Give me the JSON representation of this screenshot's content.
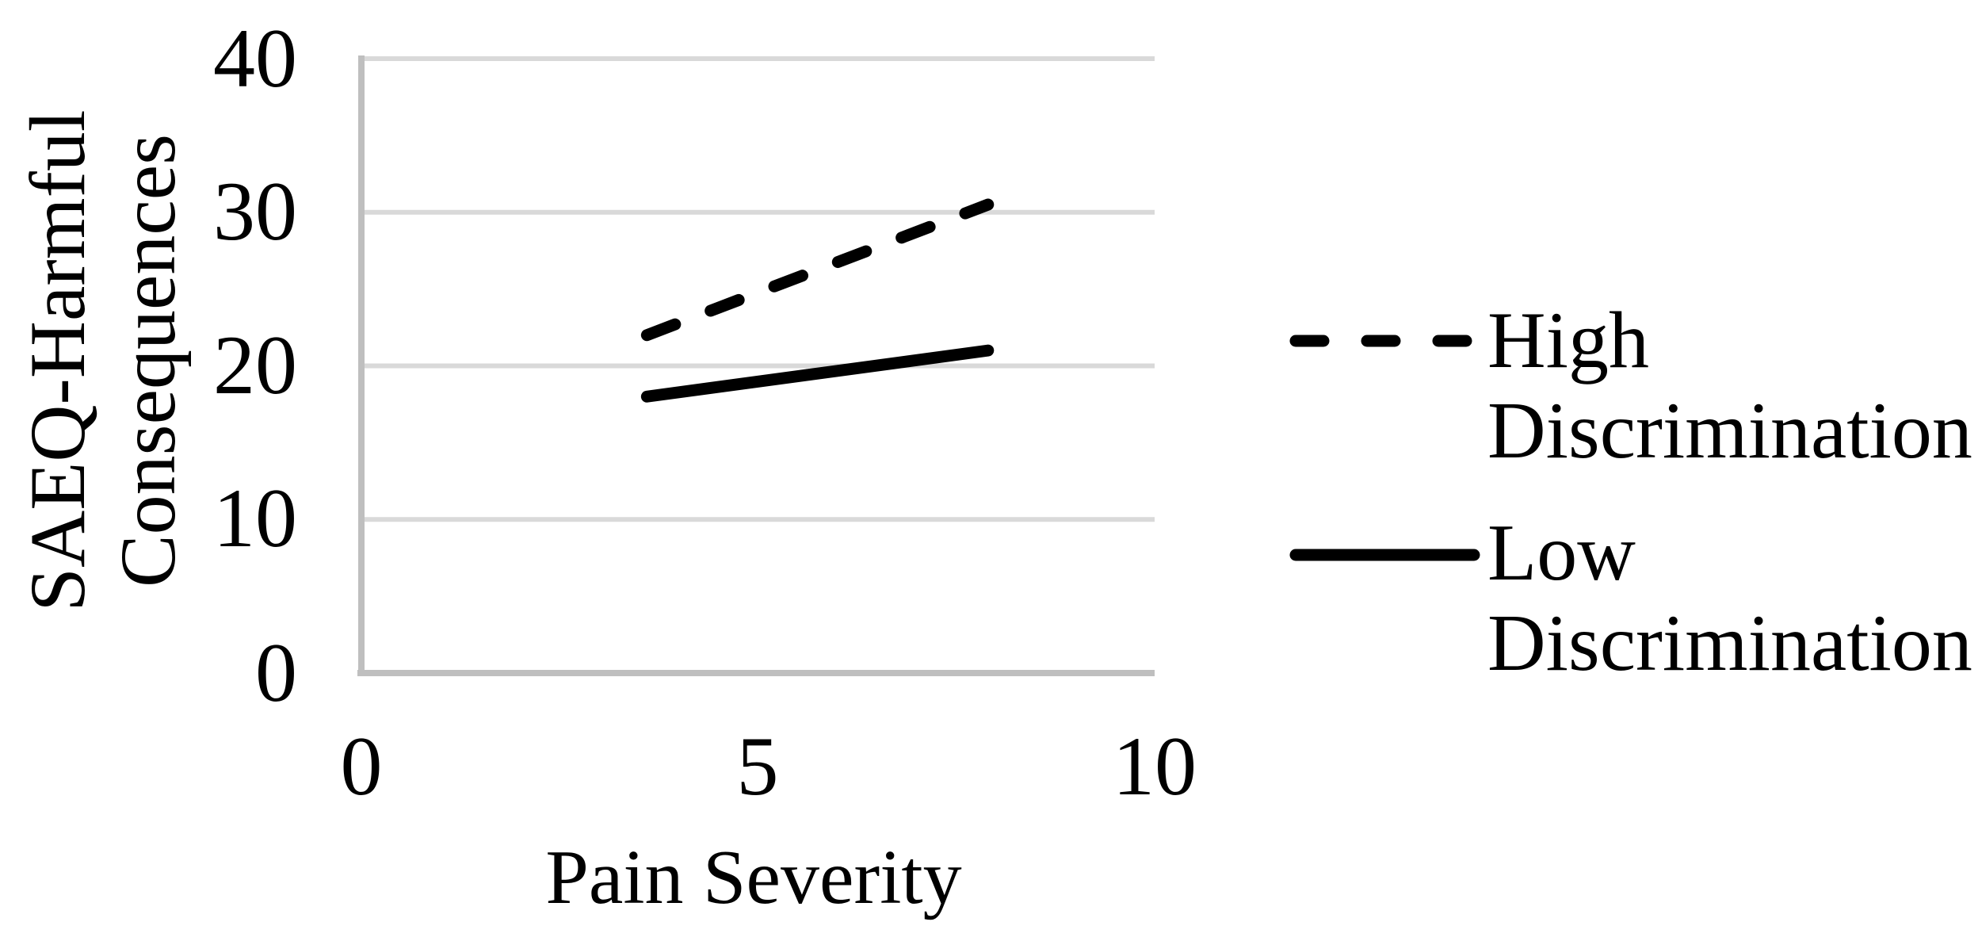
{
  "figure": {
    "background": "#ffffff"
  },
  "chart_data": {
    "type": "line",
    "title": "",
    "xlabel": "Pain Severity",
    "ylabel": "SAEQ-Harmful Consequences",
    "ylabel_lines": [
      "SAEQ-Harmful",
      "Consequences"
    ],
    "xlim": [
      0,
      10
    ],
    "ylim": [
      0,
      40
    ],
    "xticks": [
      0,
      5,
      10
    ],
    "yticks": [
      40,
      30,
      20,
      10,
      0
    ],
    "grid": "horizontal-only",
    "legend_position": "right",
    "x": [
      3.6,
      7.9
    ],
    "series": [
      {
        "name": "High Discrimination",
        "style": "dashed",
        "color": "#000000",
        "values": [
          22,
          30.5
        ]
      },
      {
        "name": "Low Discrimination",
        "style": "solid",
        "color": "#000000",
        "values": [
          18,
          21
        ]
      }
    ],
    "colors": {
      "gridline": "#d9d9d9",
      "axis": "#bfbfbf",
      "line": "#000000"
    }
  },
  "axes": {
    "x_title": "Pain Severity",
    "y_title_line1": "SAEQ-Harmful",
    "y_title_line2": "Consequences",
    "x_tick_labels": [
      "0",
      "5",
      "10"
    ],
    "y_tick_labels": [
      "40",
      "30",
      "20",
      "10",
      "0"
    ]
  },
  "legend": {
    "items": [
      {
        "label_line1": "High",
        "label_line2": "Discrimination",
        "style": "dashed"
      },
      {
        "label_line1": "Low",
        "label_line2": "Discrimination",
        "style": "solid"
      }
    ]
  }
}
